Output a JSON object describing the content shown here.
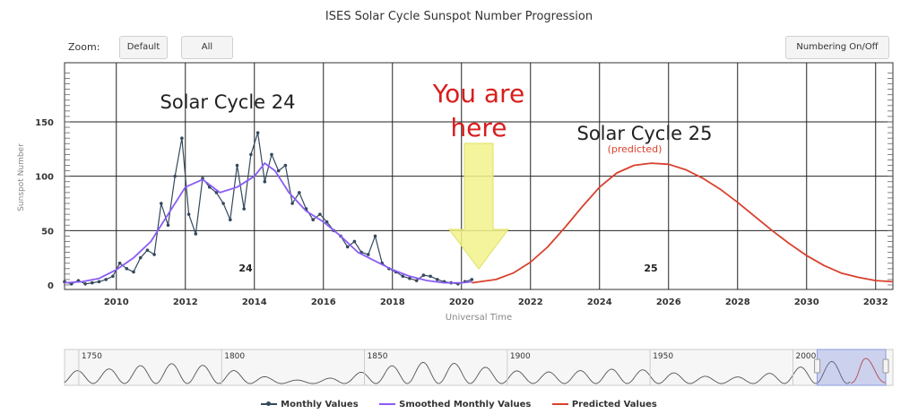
{
  "title": "ISES Solar Cycle Sunspot Number Progression",
  "zoom": {
    "label": "Zoom:",
    "buttons": [
      "Default",
      "All"
    ]
  },
  "numbering_button": "Numbering On/Off",
  "annotations": {
    "cycle24": "Solar Cycle 24",
    "you_are": "You are",
    "here": "here",
    "cycle25": "Solar Cycle 25",
    "predicted": "(predicted)",
    "label24": "24",
    "label25": "25"
  },
  "legend": [
    {
      "label": "Monthly Values",
      "color": "#34495e"
    },
    {
      "label": "Smoothed Monthly Values",
      "color": "#8a5cf6"
    },
    {
      "label": "Predicted Values",
      "color": "#d9412e"
    }
  ],
  "colors": {
    "monthly": "#34495e",
    "smoothed": "#8a5cf6",
    "predicted": "#d9412e",
    "arrow": "#f2f28c",
    "you_are_here": "#d81e1e"
  },
  "navigator": {
    "labels": [
      "1750",
      "1800",
      "1850",
      "1900",
      "1950",
      "2000"
    ],
    "label_years": [
      1750,
      1800,
      1850,
      1900,
      1950,
      2000
    ],
    "range": [
      1745,
      2035
    ],
    "selection": [
      2008.5,
      2032.5
    ]
  },
  "chart_data": {
    "type": "line",
    "title": "ISES Solar Cycle Sunspot Number Progression",
    "xlabel": "Universal Time",
    "ylabel": "Sunspot Number",
    "xlim": [
      2008.5,
      2032.5
    ],
    "ylim": [
      0,
      195
    ],
    "xticks": [
      2010,
      2012,
      2014,
      2016,
      2018,
      2020,
      2022,
      2024,
      2026,
      2028,
      2030,
      2032
    ],
    "yticks": [
      0,
      50,
      100,
      150
    ],
    "grid": true,
    "legend_position": "bottom",
    "series": [
      {
        "name": "Monthly Values",
        "x": [
          2008.5,
          2008.7,
          2008.9,
          2009.1,
          2009.3,
          2009.5,
          2009.7,
          2009.9,
          2010.1,
          2010.3,
          2010.5,
          2010.7,
          2010.9,
          2011.1,
          2011.3,
          2011.5,
          2011.7,
          2011.9,
          2012.1,
          2012.3,
          2012.5,
          2012.7,
          2012.9,
          2013.1,
          2013.3,
          2013.5,
          2013.7,
          2013.9,
          2014.1,
          2014.3,
          2014.5,
          2014.7,
          2014.9,
          2015.1,
          2015.3,
          2015.5,
          2015.7,
          2015.9,
          2016.1,
          2016.3,
          2016.5,
          2016.7,
          2016.9,
          2017.1,
          2017.3,
          2017.5,
          2017.7,
          2017.9,
          2018.1,
          2018.3,
          2018.5,
          2018.7,
          2018.9,
          2019.1,
          2019.3,
          2019.5,
          2019.7,
          2019.9,
          2020.1,
          2020.3
        ],
        "y": [
          3,
          1,
          4,
          1,
          2,
          3,
          5,
          8,
          20,
          15,
          12,
          25,
          32,
          28,
          75,
          55,
          100,
          135,
          65,
          47,
          98,
          90,
          85,
          75,
          60,
          110,
          70,
          120,
          140,
          95,
          120,
          105,
          110,
          75,
          85,
          70,
          60,
          65,
          58,
          50,
          45,
          35,
          40,
          30,
          28,
          45,
          20,
          15,
          12,
          8,
          6,
          4,
          9,
          8,
          5,
          3,
          2,
          1,
          3,
          5
        ]
      },
      {
        "name": "Smoothed Monthly Values",
        "x": [
          2008.5,
          2009.0,
          2009.5,
          2010.0,
          2010.5,
          2011.0,
          2011.5,
          2012.0,
          2012.5,
          2013.0,
          2013.5,
          2014.0,
          2014.3,
          2014.6,
          2015.0,
          2015.5,
          2016.0,
          2016.5,
          2017.0,
          2017.5,
          2018.0,
          2018.5,
          2019.0,
          2019.5,
          2020.0,
          2020.3
        ],
        "y": [
          2,
          3,
          6,
          14,
          25,
          40,
          65,
          90,
          97,
          85,
          90,
          100,
          112,
          105,
          85,
          68,
          58,
          45,
          30,
          22,
          14,
          8,
          4,
          2,
          2,
          3
        ]
      },
      {
        "name": "Predicted Values",
        "x": [
          2020.3,
          2021.0,
          2021.5,
          2022.0,
          2022.5,
          2023.0,
          2023.5,
          2024.0,
          2024.5,
          2025.0,
          2025.5,
          2026.0,
          2026.5,
          2027.0,
          2027.5,
          2028.0,
          2028.5,
          2029.0,
          2029.5,
          2030.0,
          2030.5,
          2031.0,
          2031.5,
          2032.0,
          2032.5
        ],
        "y": [
          2,
          5,
          11,
          21,
          35,
          53,
          72,
          90,
          103,
          110,
          112,
          111,
          106,
          98,
          88,
          76,
          63,
          50,
          38,
          27,
          18,
          11,
          7,
          4,
          3
        ]
      }
    ]
  }
}
